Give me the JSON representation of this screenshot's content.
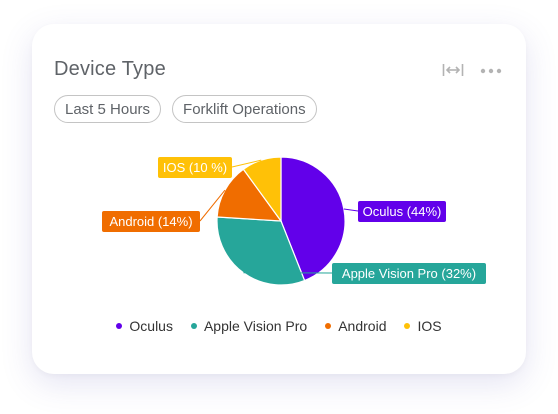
{
  "card": {
    "title": "Device Type",
    "expand_icon": "expand-horizontal-icon",
    "more_icon": "more-horizontal-icon"
  },
  "chips": [
    {
      "label": "Last 5 Hours"
    },
    {
      "label": "Forklift Operations"
    }
  ],
  "chart_data": {
    "type": "pie",
    "title": "",
    "slices": [
      {
        "name": "Oculus",
        "value": 44,
        "label": "Oculus (44%)",
        "color": "#6200ea"
      },
      {
        "name": "Apple Vision Pro",
        "value": 32,
        "label": "Apple Vision Pro (32%)",
        "color": "#26a69a"
      },
      {
        "name": "Android",
        "value": 14,
        "label": "Android (14%)",
        "color": "#f06d00"
      },
      {
        "name": "IOS",
        "value": 10,
        "label": "IOS (10 %)",
        "color": "#ffc107"
      }
    ],
    "legend_position": "bottom"
  }
}
